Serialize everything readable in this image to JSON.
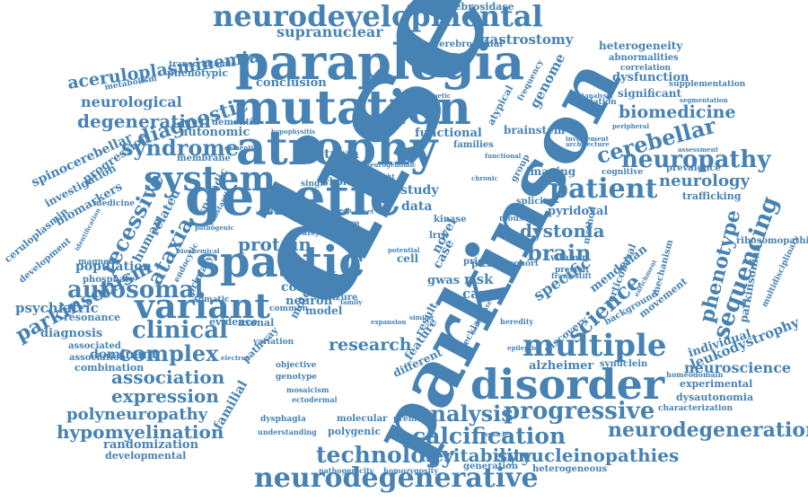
{
  "word_cloud": {
    "color": "#4682b4",
    "background": "#ffffff",
    "words": [
      "disease",
      "parkinson",
      "mutation",
      "paraplegia",
      "genetic",
      "atrophy",
      "neurodevelopmental",
      "spastic",
      "disorder",
      "multiple",
      "variant",
      "system",
      "neurodegenerative",
      "patient",
      "progressive",
      "technology",
      "calcification",
      "analysis",
      "hypomyelination",
      "neurodegeneration",
      "synucleinopathies",
      "heritability",
      "expression",
      "association",
      "complex",
      "clinical",
      "autosomal",
      "recessive",
      "ataxia",
      "syndrome",
      "diagnostic",
      "cerebellar",
      "neuropathy",
      "sequencing",
      "phenotype",
      "science",
      "dystonia",
      "brain",
      "protein",
      "aceruloplasminemia",
      "degeneration",
      "biomedicine",
      "neurology",
      "parkinsonism",
      "polyneuropathy",
      "research",
      "neuroscience",
      "leukodystrophy",
      "ribosomopathies",
      "supranuclear",
      "gastrostomy",
      "glucocerebrosidase",
      "neurological",
      "conclusion",
      "spectrum",
      "autonomic",
      "functional",
      "exome",
      "control",
      "neuron",
      "cause",
      "risk",
      "specific",
      "pyridoxal",
      "dysfunction",
      "significant",
      "trafficking",
      "prevalence",
      "individual",
      "mendelian",
      "corticobasal",
      "alzheimer",
      "synuclein",
      "experimental",
      "dysautonomia",
      "characterization",
      "randomization",
      "developmental",
      "familial",
      "dominant",
      "psychiatric",
      "population",
      "sporadic",
      "human",
      "related",
      "study",
      "data",
      "novel",
      "case",
      "cell",
      "kinase",
      "lrrk",
      "gwas",
      "pdxk",
      "prion",
      "molecular",
      "polygenic",
      "premotor",
      "generation",
      "heterogeneous",
      "homozygosity",
      "pathogenicity",
      "dysphagia",
      "understanding",
      "combination",
      "resonance",
      "diagnosis",
      "spinocerebellar",
      "investigation",
      "progression",
      "biomarkers",
      "ceruloplasmin",
      "development",
      "medicine",
      "transcriptomic",
      "phenotypic",
      "metabolism",
      "dementia",
      "membrane",
      "heterogeneity",
      "abnormalities",
      "correlation",
      "supplementation",
      "segmentation",
      "regulation",
      "cerebrospinal",
      "genome",
      "atypical",
      "frequency",
      "families",
      "brainstem",
      "imaging",
      "splicing",
      "group",
      "mouse",
      "whole",
      "single",
      "model",
      "seizure",
      "motor",
      "axonal",
      "common",
      "evidence",
      "association",
      "phosphate",
      "endocytic",
      "primary",
      "pathway",
      "variation",
      "objective",
      "genotype",
      "mosaicism",
      "ectodermal",
      "different",
      "feature",
      "result",
      "necklace",
      "discovery",
      "background",
      "movement",
      "mechanism",
      "multidisciplinary",
      "parkinsonian",
      "homeodomain",
      "cognitive",
      "framestift",
      "method",
      "vitamin",
      "cohort",
      "present",
      "heredity",
      "associated",
      "substantia",
      "magnetic",
      "severe",
      "somatic",
      "palsy",
      "possible",
      "assessment",
      "peripheral",
      "involvement",
      "architecture",
      "metanalysis",
      "pathogenic",
      "neurogenetic",
      "dementia",
      "hypophysitis",
      "neurogenomic",
      "biochemical",
      "identification",
      "enrichment",
      "epileptic",
      "similar",
      "contribute",
      "expansion",
      "family",
      "functional",
      "chronic",
      "sleep",
      "onset",
      "insight",
      "neuropathology",
      "electron",
      "vesicle",
      "potential",
      "autism",
      "infant",
      "mitochondrial",
      "deficiency",
      "manifestation"
    ]
  }
}
